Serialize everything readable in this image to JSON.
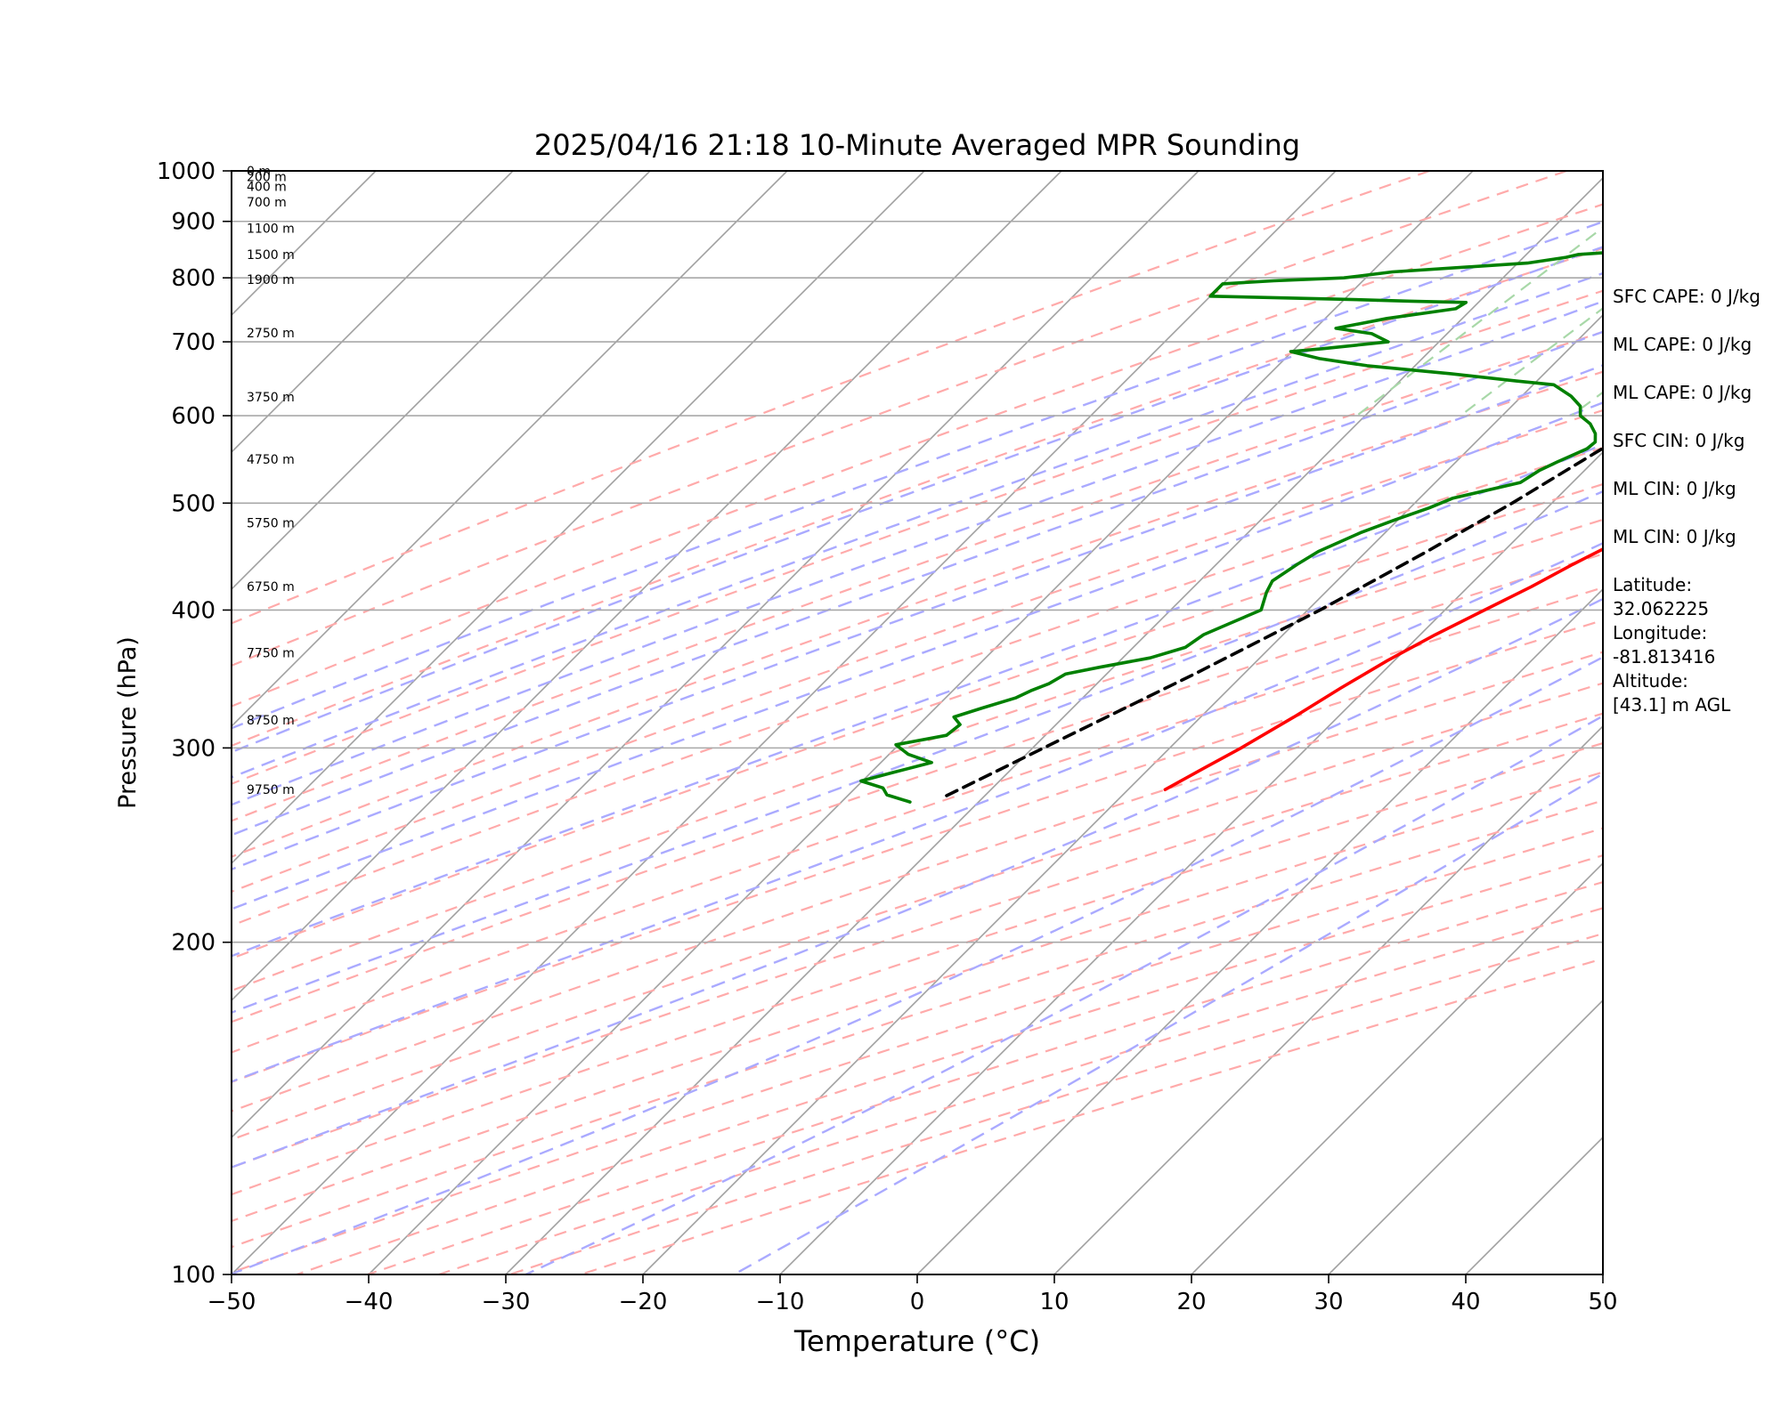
{
  "chart_data": {
    "type": "line",
    "title": "2025/04/16 21:18 10-Minute Averaged MPR Sounding",
    "xlabel": "Temperature (°C)",
    "ylabel": "Pressure (hPa)",
    "xlim": [
      -50,
      50
    ],
    "ylim": [
      1000,
      100
    ],
    "y_scale": "log",
    "skew": "isotherms skewed ~45°",
    "x_ticks": [
      "−50",
      "−40",
      "−30",
      "−20",
      "−10",
      "0",
      "10",
      "20",
      "30",
      "40",
      "50"
    ],
    "x_tick_values": [
      -50,
      -40,
      -30,
      -20,
      -10,
      0,
      10,
      20,
      30,
      40,
      50
    ],
    "y_ticks": [
      "100",
      "200",
      "300",
      "400",
      "500",
      "600",
      "700",
      "800",
      "900",
      "1000"
    ],
    "y_tick_values": [
      100,
      200,
      300,
      400,
      500,
      600,
      700,
      800,
      900,
      1000
    ],
    "height_labels": [
      {
        "text": "9750 m",
        "p": 275
      },
      {
        "text": "8750 m",
        "p": 318
      },
      {
        "text": "7750 m",
        "p": 366
      },
      {
        "text": "6750 m",
        "p": 420
      },
      {
        "text": "5750 m",
        "p": 480
      },
      {
        "text": "4750 m",
        "p": 548
      },
      {
        "text": "3750 m",
        "p": 624
      },
      {
        "text": "2750 m",
        "p": 713
      },
      {
        "text": "1900 m",
        "p": 797
      },
      {
        "text": "1500 m",
        "p": 840
      },
      {
        "text": "1100 m",
        "p": 887
      },
      {
        "text": "700 m",
        "p": 937
      },
      {
        "text": "400 m",
        "p": 968
      },
      {
        "text": "200 m",
        "p": 988
      },
      {
        "text": "0 m",
        "p": 1000
      }
    ],
    "series": [
      {
        "role": "temperature",
        "color": "#ff0000",
        "style": "solid",
        "points": [
          [
            1000,
            21.8
          ],
          [
            990,
            18.5
          ],
          [
            975,
            15.5
          ],
          [
            960,
            13.5
          ],
          [
            945,
            12.3
          ],
          [
            930,
            11.6
          ],
          [
            915,
            11.0
          ],
          [
            900,
            10.5
          ],
          [
            880,
            10.2
          ],
          [
            860,
            10.1
          ],
          [
            840,
            10.1
          ],
          [
            820,
            10.0
          ],
          [
            800,
            9.8
          ],
          [
            780,
            9.6
          ],
          [
            760,
            9.4
          ],
          [
            740,
            9.2
          ],
          [
            720,
            9.0
          ],
          [
            700,
            8.7
          ],
          [
            680,
            8.2
          ],
          [
            660,
            7.6
          ],
          [
            640,
            6.9
          ],
          [
            620,
            6.2
          ],
          [
            600,
            5.5
          ],
          [
            580,
            4.4
          ],
          [
            560,
            3.3
          ],
          [
            540,
            2.4
          ],
          [
            520,
            1.7
          ],
          [
            500,
            0.4
          ],
          [
            480,
            -1.0
          ],
          [
            460,
            -2.5
          ],
          [
            440,
            -4.0
          ],
          [
            420,
            -5.4
          ],
          [
            400,
            -7.1
          ],
          [
            380,
            -8.9
          ],
          [
            360,
            -10.5
          ],
          [
            340,
            -11.9
          ],
          [
            320,
            -13.2
          ],
          [
            300,
            -14.8
          ],
          [
            288,
            -16.0
          ],
          [
            275,
            -17.3
          ]
        ]
      },
      {
        "role": "dewpoint",
        "color": "#008000",
        "style": "solid",
        "points": [
          [
            1000,
            -5.4
          ],
          [
            990,
            -6.4
          ],
          [
            985,
            -6.1
          ],
          [
            975,
            -6.0
          ],
          [
            965,
            -5.3
          ],
          [
            955,
            -4.5
          ],
          [
            945,
            -4.9
          ],
          [
            930,
            -5.6
          ],
          [
            915,
            -7.4
          ],
          [
            900,
            -10.5
          ],
          [
            880,
            -15.0
          ],
          [
            870,
            -16.7
          ],
          [
            860,
            -17.5
          ],
          [
            855,
            -17.6
          ],
          [
            840,
            -26.2
          ],
          [
            835,
            -26.9
          ],
          [
            825,
            -29.3
          ],
          [
            810,
            -38.5
          ],
          [
            800,
            -41.6
          ],
          [
            795,
            -46.5
          ],
          [
            790,
            -50.0
          ],
          [
            770,
            -50.0
          ],
          [
            765,
            -40.0
          ],
          [
            762,
            -35.0
          ],
          [
            760,
            -30.9
          ],
          [
            750,
            -31.2
          ],
          [
            735,
            -35.5
          ],
          [
            720,
            -38.5
          ],
          [
            712,
            -35.5
          ],
          [
            700,
            -33.7
          ],
          [
            690,
            -38.0
          ],
          [
            686,
            -40.1
          ],
          [
            676,
            -37.5
          ],
          [
            666,
            -33.5
          ],
          [
            655,
            -26.8
          ],
          [
            645,
            -21.5
          ],
          [
            640,
            -18.5
          ],
          [
            625,
            -16.4
          ],
          [
            612,
            -15.0
          ],
          [
            600,
            -14.3
          ],
          [
            590,
            -13.0
          ],
          [
            578,
            -11.9
          ],
          [
            568,
            -11.3
          ],
          [
            560,
            -11.4
          ],
          [
            545,
            -12.6
          ],
          [
            535,
            -13.3
          ],
          [
            522,
            -13.8
          ],
          [
            505,
            -17.6
          ],
          [
            495,
            -18.6
          ],
          [
            483,
            -20.2
          ],
          [
            470,
            -21.8
          ],
          [
            452,
            -23.5
          ],
          [
            440,
            -24.1
          ],
          [
            425,
            -24.7
          ],
          [
            415,
            -24.3
          ],
          [
            400,
            -23.4
          ],
          [
            390,
            -24.6
          ],
          [
            380,
            -25.8
          ],
          [
            370,
            -26.2
          ],
          [
            362,
            -28.0
          ],
          [
            355,
            -31.0
          ],
          [
            350,
            -33.0
          ],
          [
            343,
            -33.5
          ],
          [
            338,
            -34.3
          ],
          [
            333,
            -34.9
          ],
          [
            326,
            -36.6
          ],
          [
            320,
            -38.0
          ],
          [
            315,
            -37.0
          ],
          [
            308,
            -37.2
          ],
          [
            302,
            -40.2
          ],
          [
            296,
            -38.6
          ],
          [
            291,
            -36.3
          ],
          [
            285,
            -38.4
          ],
          [
            280,
            -40.1
          ],
          [
            276,
            -38.0
          ],
          [
            272,
            -37.2
          ],
          [
            268,
            -35.0
          ]
        ]
      },
      {
        "role": "parcel",
        "color": "#000000",
        "style": "dashed",
        "points": [
          [
            1000,
            22.5
          ],
          [
            925,
            16.0
          ],
          [
            850,
            8.5
          ],
          [
            780,
            1.5
          ],
          [
            700,
            -4.5
          ],
          [
            690,
            -5.8
          ],
          [
            665,
            -6.5
          ],
          [
            640,
            -7.0
          ],
          [
            600,
            -8.4
          ],
          [
            560,
            -10.3
          ],
          [
            500,
            -12.9
          ],
          [
            450,
            -15.7
          ],
          [
            400,
            -19.1
          ],
          [
            350,
            -23.6
          ],
          [
            300,
            -29.2
          ],
          [
            270,
            -33.0
          ]
        ]
      }
    ],
    "annotations": [
      "SFC CAPE: 0 J/kg",
      "ML CAPE: 0 J/kg",
      "ML CAPE: 0 J/kg",
      "SFC CIN: 0 J/kg",
      "ML CIN: 0 J/kg",
      "ML CIN: 0 J/kg",
      "Latitude:\n32.062225",
      "Longitude:\n-81.813416",
      "Altitude:\n[43.1] m AGL"
    ],
    "background_lines": {
      "isotherms_color": "#a0a0a0",
      "dry_adiabats_color": "#ffaaaa",
      "moist_adiabats_color": "#aaaaff",
      "mixing_ratio_color": "#a8d8a8"
    }
  }
}
